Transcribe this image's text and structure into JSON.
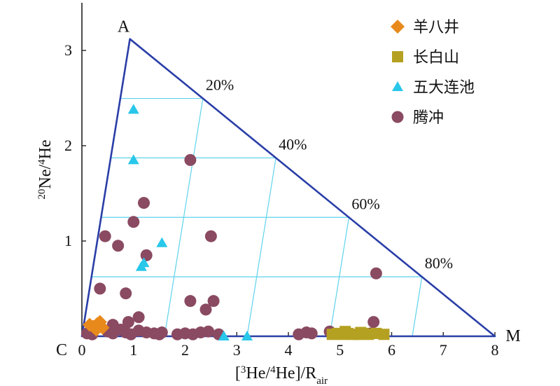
{
  "chart_data": {
    "type": "scatter",
    "title": "",
    "xlabel": "[³He/⁴He]/R_air",
    "ylabel": "²⁰Ne/⁴He",
    "xlim": [
      0,
      8
    ],
    "ylim": [
      0,
      3.5
    ],
    "x_ticks": [
      "0",
      "1",
      "2",
      "3",
      "4",
      "5",
      "6",
      "7",
      "8"
    ],
    "y_ticks": [
      "1",
      "2",
      "3"
    ],
    "grid": false,
    "legend_position": "top-right",
    "mixing_triangle": {
      "vertices": [
        {
          "label": "A",
          "x": 0.93,
          "y": 3.12
        },
        {
          "label": "C",
          "x": 0.0,
          "y": 0.0
        },
        {
          "label": "M",
          "x": 8.0,
          "y": 0.0
        }
      ],
      "edge_labels": [
        "20%",
        "40%",
        "60%",
        "80%"
      ]
    },
    "series": [
      {
        "name": "羊八井",
        "marker": "diamond",
        "color": "#e8891c",
        "points": [
          [
            0.15,
            0.12
          ],
          [
            0.22,
            0.1
          ],
          [
            0.3,
            0.13
          ],
          [
            0.35,
            0.15
          ],
          [
            0.4,
            0.09
          ],
          [
            0.28,
            0.07
          ]
        ]
      },
      {
        "name": "长白山",
        "marker": "square",
        "color": "#b5a121",
        "points": [
          [
            4.85,
            0.02
          ],
          [
            4.95,
            0.03
          ],
          [
            5.05,
            0.02
          ],
          [
            5.15,
            0.03
          ],
          [
            5.25,
            0.02
          ],
          [
            5.35,
            0.02
          ],
          [
            5.45,
            0.03
          ],
          [
            5.55,
            0.02
          ],
          [
            5.7,
            0.03
          ],
          [
            5.85,
            0.02
          ],
          [
            5.1,
            0.05
          ],
          [
            5.4,
            0.04
          ]
        ]
      },
      {
        "name": "五大连池",
        "marker": "triangle",
        "color": "#29c7ea",
        "points": [
          [
            1.0,
            2.38
          ],
          [
            1.0,
            1.85
          ],
          [
            1.55,
            0.98
          ],
          [
            1.2,
            0.77
          ],
          [
            1.15,
            0.73
          ],
          [
            2.75,
            0.0
          ],
          [
            3.2,
            0.0
          ]
        ]
      },
      {
        "name": "腾冲",
        "marker": "circle",
        "color": "#8a4a61",
        "points": [
          [
            2.1,
            1.85
          ],
          [
            1.2,
            1.4
          ],
          [
            1.0,
            1.2
          ],
          [
            0.45,
            1.05
          ],
          [
            0.7,
            0.95
          ],
          [
            1.25,
            0.85
          ],
          [
            2.5,
            1.05
          ],
          [
            0.35,
            0.5
          ],
          [
            0.85,
            0.45
          ],
          [
            2.1,
            0.37
          ],
          [
            2.55,
            0.37
          ],
          [
            2.4,
            0.28
          ],
          [
            5.7,
            0.66
          ],
          [
            1.1,
            0.2
          ],
          [
            0.9,
            0.15
          ],
          [
            5.65,
            0.15
          ],
          [
            0.1,
            0.03
          ],
          [
            0.2,
            0.02
          ],
          [
            0.5,
            0.05
          ],
          [
            0.6,
            0.03
          ],
          [
            0.75,
            0.07
          ],
          [
            0.85,
            0.04
          ],
          [
            0.95,
            0.02
          ],
          [
            1.1,
            0.06
          ],
          [
            1.25,
            0.04
          ],
          [
            1.4,
            0.03
          ],
          [
            1.5,
            0.02
          ],
          [
            1.85,
            0.02
          ],
          [
            2.0,
            0.03
          ],
          [
            2.15,
            0.02
          ],
          [
            2.3,
            0.04
          ],
          [
            2.45,
            0.05
          ],
          [
            2.65,
            0.02
          ],
          [
            4.2,
            0.02
          ],
          [
            4.35,
            0.04
          ],
          [
            4.45,
            0.03
          ],
          [
            4.8,
            0.05
          ],
          [
            5.6,
            0.03
          ],
          [
            0.6,
            0.12
          ],
          [
            1.55,
            0.04
          ]
        ]
      }
    ]
  }
}
